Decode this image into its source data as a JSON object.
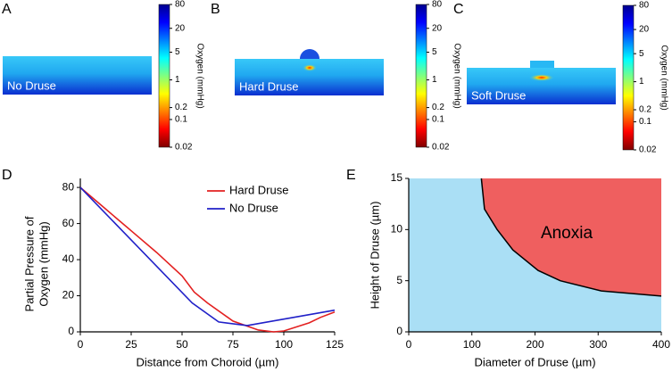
{
  "chart_data": [
    {
      "type": "colormap",
      "panel": "A",
      "label": "No Druse",
      "colorbar_label": "Oxygen (mmHg)",
      "colormap": "jet",
      "log_scale": true,
      "ylim": [
        0.02,
        80
      ],
      "yticks": [
        80,
        20,
        5,
        1,
        0.2,
        0.1,
        0.02
      ]
    },
    {
      "type": "colormap",
      "panel": "B",
      "label": "Hard Druse",
      "colorbar_label": "Oxygen (mmHg)",
      "colormap": "jet",
      "log_scale": true,
      "ylim": [
        0.02,
        80
      ],
      "yticks": [
        80,
        20,
        5,
        1,
        0.2,
        0.1,
        0.02
      ]
    },
    {
      "type": "colormap",
      "panel": "C",
      "label": "Soft Druse",
      "colorbar_label": "Oxygen (mmHg)",
      "colormap": "jet",
      "log_scale": true,
      "ylim": [
        0.02,
        80
      ],
      "yticks": [
        80,
        20,
        5,
        1,
        0.2,
        0.1,
        0.02
      ]
    },
    {
      "type": "line",
      "panel": "D",
      "xlabel": "Distance from Choroid (µm)",
      "ylabel": [
        "Partial Pressure of",
        "Oxygen (mmHg)"
      ],
      "xlim": [
        0,
        125
      ],
      "xticks": [
        0,
        25,
        50,
        75,
        100,
        125
      ],
      "ylim": [
        0,
        85
      ],
      "yticks": [
        0,
        20,
        40,
        60,
        80
      ],
      "legend": "upper-right",
      "series": [
        {
          "name": "Hard Druse",
          "color": "#e32020",
          "x": [
            0,
            12.5,
            25,
            37.5,
            50,
            56,
            62.5,
            75,
            87.5,
            95,
            100,
            112.5,
            118,
            125
          ],
          "values": [
            80,
            68,
            56,
            44,
            31,
            22,
            16,
            6,
            1,
            0,
            0.5,
            5,
            8,
            11
          ]
        },
        {
          "name": "No Druse",
          "color": "#2020c8",
          "x": [
            0,
            55,
            68,
            82,
            125
          ],
          "values": [
            80,
            16,
            5.5,
            3.5,
            12
          ]
        }
      ]
    },
    {
      "type": "area",
      "panel": "E",
      "xlabel": "Diameter of Druse (µm)",
      "ylabel": "Height of Druse (µm)",
      "xlim": [
        0,
        400
      ],
      "xticks": [
        0,
        100,
        200,
        300,
        400
      ],
      "ylim": [
        0,
        15
      ],
      "yticks": [
        0,
        5,
        10,
        15
      ],
      "annotation": "Anoxia",
      "colors": {
        "above": "#ef5f5f",
        "below": "#aadff5",
        "boundary": "#000000"
      },
      "x": [
        115,
        120,
        140,
        165,
        205,
        240,
        305,
        400
      ],
      "values": [
        15,
        12,
        10,
        8,
        6,
        5,
        4,
        3.5
      ]
    }
  ]
}
